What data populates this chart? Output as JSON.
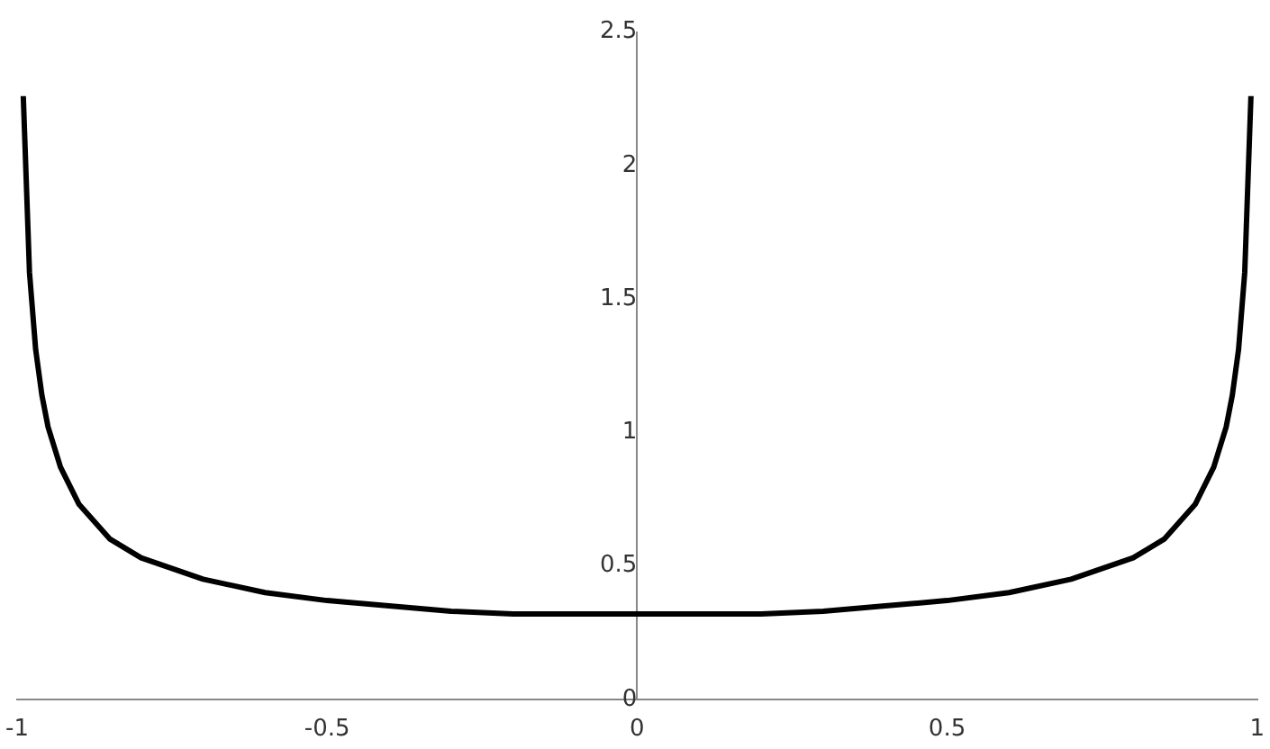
{
  "chart_data": {
    "type": "line",
    "x": [
      -0.99,
      -0.98,
      -0.97,
      -0.96,
      -0.95,
      -0.93,
      -0.9,
      -0.85,
      -0.8,
      -0.7,
      -0.6,
      -0.5,
      -0.4,
      -0.3,
      -0.2,
      -0.1,
      0,
      0.1,
      0.2,
      0.3,
      0.4,
      0.5,
      0.6,
      0.7,
      0.8,
      0.85,
      0.9,
      0.93,
      0.95,
      0.96,
      0.97,
      0.98,
      0.99
    ],
    "series": [
      {
        "color": "#000000",
        "values": [
          2.26,
          1.6,
          1.31,
          1.14,
          1.02,
          0.87,
          0.73,
          0.6,
          0.53,
          0.45,
          0.4,
          0.37,
          0.35,
          0.33,
          0.32,
          0.32,
          0.32,
          0.32,
          0.32,
          0.33,
          0.35,
          0.37,
          0.4,
          0.45,
          0.53,
          0.6,
          0.73,
          0.87,
          1.02,
          1.14,
          1.31,
          1.6,
          2.26
        ]
      }
    ],
    "xlim": [
      -1,
      1
    ],
    "xticks": [
      -1,
      -0.5,
      0,
      0.5,
      1
    ],
    "ylim": [
      0,
      2.5
    ],
    "yticks": [
      0,
      0.5,
      1,
      1.5,
      2,
      2.5
    ],
    "marker": "none",
    "line_style": "solid",
    "legend": false
  }
}
